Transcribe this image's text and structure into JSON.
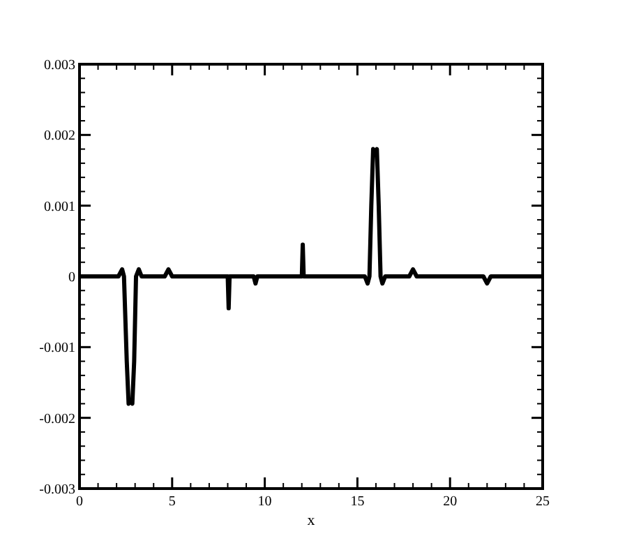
{
  "chart_data": {
    "type": "line",
    "xlabel": "x",
    "xlim": [
      0,
      25
    ],
    "xticks": [
      0,
      5,
      10,
      15,
      20,
      25
    ],
    "ylim": [
      -0.003,
      0.003
    ],
    "yticks": [
      -0.003,
      -0.002,
      -0.001,
      0,
      0.001,
      0.002,
      0.003
    ],
    "marker": "none",
    "line_style": "solid",
    "grid": false,
    "series": [
      {
        "color": "#000000",
        "x": [
          0,
          2.1,
          2.3,
          2.4,
          2.55,
          2.65,
          2.75,
          2.85,
          2.95,
          3.05,
          3.2,
          3.35,
          4.6,
          4.8,
          5.0,
          7.9,
          8.0,
          8.05,
          8.1,
          8.2,
          9.4,
          9.5,
          9.6,
          11.9,
          12.0,
          12.05,
          12.1,
          12.2,
          15.4,
          15.55,
          15.65,
          15.75,
          15.85,
          15.95,
          16.05,
          16.15,
          16.25,
          16.35,
          16.5,
          17.8,
          18.0,
          18.2,
          21.8,
          22.0,
          22.2,
          25
        ],
        "values": [
          0,
          0,
          0.0001,
          0,
          -0.0012,
          -0.0018,
          -0.00175,
          -0.0018,
          -0.0012,
          0,
          0.0001,
          0,
          0,
          0.0001,
          0,
          0,
          0,
          -0.00045,
          0,
          0,
          0,
          -0.0001,
          0,
          0,
          0,
          0.00045,
          0,
          0,
          0,
          -0.0001,
          0,
          0.001,
          0.0018,
          0.00175,
          0.0018,
          0.001,
          0,
          -0.0001,
          0,
          0,
          0.0001,
          0,
          0,
          -0.0001,
          0,
          0
        ]
      }
    ]
  }
}
